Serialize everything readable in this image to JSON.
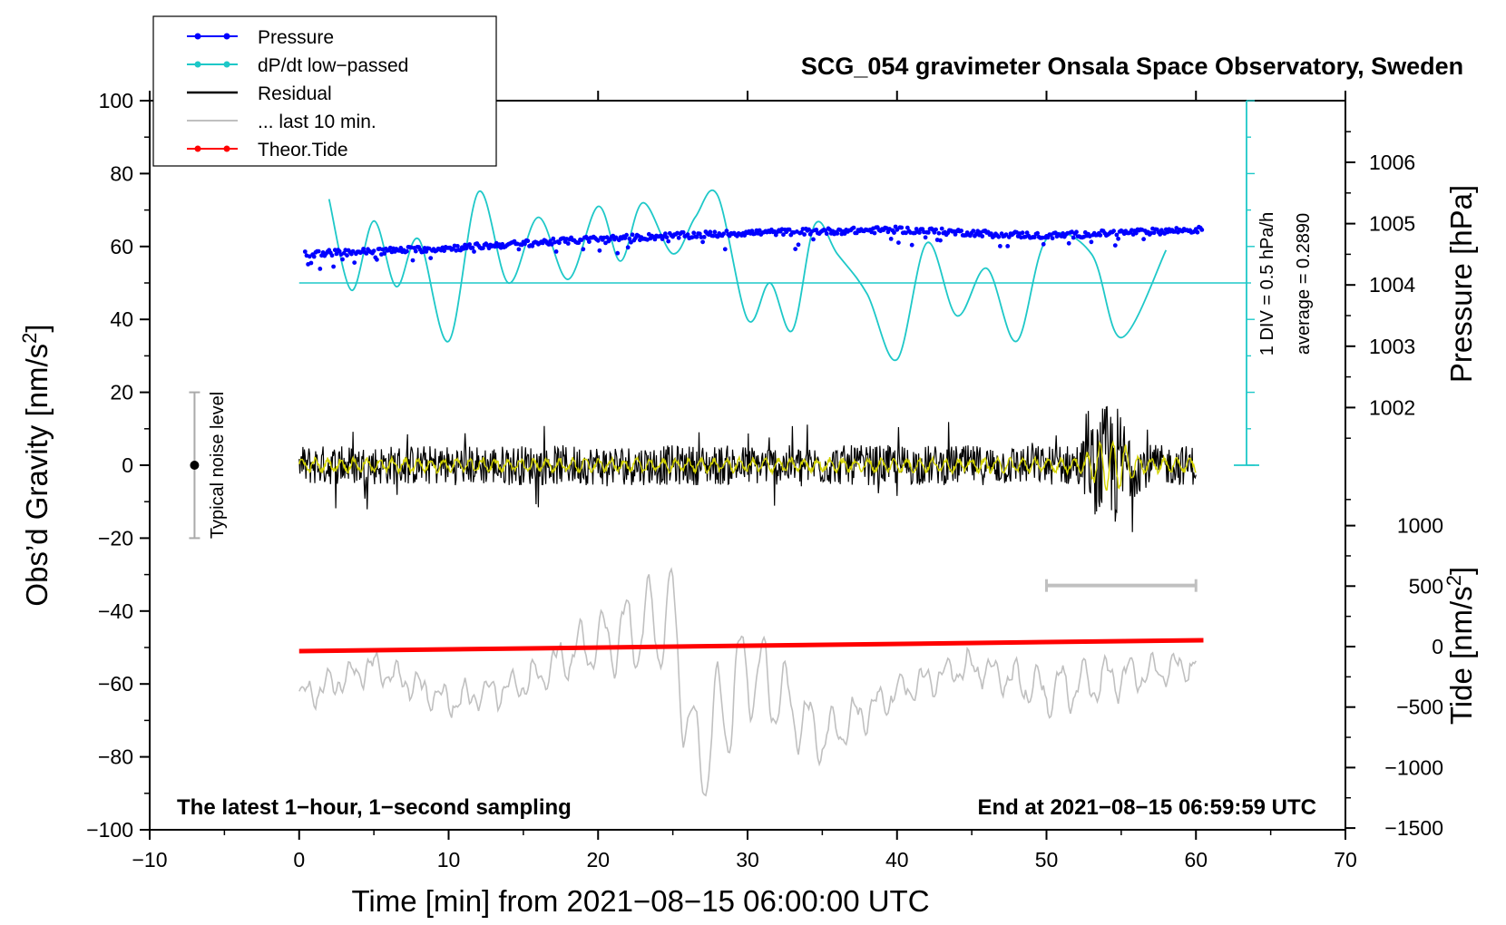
{
  "chart_data": {
    "type": "line",
    "title": "SCG_054 gravimeter Onsala Space Observatory, Sweden",
    "xlabel": "Time [min] from 2021−08−15 06:00:00 UTC",
    "ylabel_left": "Obs’d Gravity [nm/s",
    "ylabel_left_sup": "2",
    "ylabel_left_end": "]",
    "ylabel_right_pressure": "Pressure [hPa]",
    "ylabel_right_tide": "Tide [nm/s",
    "ylabel_right_tide_sup": "2",
    "ylabel_right_tide_end": "]",
    "xlim": [
      -10,
      70
    ],
    "ylim": [
      -100,
      100
    ],
    "x_ticks": [
      "−10",
      "0",
      "10",
      "20",
      "30",
      "40",
      "50",
      "60",
      "70"
    ],
    "y_ticks": [
      "−100",
      "−80",
      "−60",
      "−40",
      "−20",
      "0",
      "20",
      "40",
      "60",
      "80",
      "100"
    ],
    "pressure_axis": {
      "ticks": [
        "1002",
        "1003",
        "1004",
        "1005",
        "1006"
      ],
      "range_hpa": [
        1000.2,
        1006.8
      ]
    },
    "tide_axis": {
      "ticks": [
        "−1500",
        "−1000",
        "−500",
        "0",
        "500",
        "1000"
      ]
    },
    "legend": [
      {
        "label": "Pressure",
        "color": "#0000ff",
        "marker": true
      },
      {
        "label": "dP/dt low−passed",
        "color": "#1ec8c8",
        "marker": true
      },
      {
        "label": "Residual",
        "color": "#000000",
        "marker": false
      },
      {
        "label": "... last 10 min.",
        "color": "#c0c0c0",
        "marker": false
      },
      {
        "label": "Theor.Tide",
        "color": "#ff0000",
        "marker": true
      }
    ],
    "series": [
      {
        "name": "Pressure",
        "unit": "hPa",
        "x": [
          0,
          10,
          20,
          30,
          40,
          50,
          60
        ],
        "values": [
          1004.5,
          1004.6,
          1004.75,
          1004.85,
          1004.9,
          1004.8,
          1004.9
        ]
      },
      {
        "name": "dP/dt low-passed",
        "unit": "gravity-axis",
        "x": [
          2,
          3.5,
          5,
          6.5,
          8,
          10,
          12,
          14,
          16,
          18,
          20,
          21.5,
          23,
          25,
          26.5,
          28,
          30,
          31.5,
          33,
          34.5,
          36,
          38,
          40,
          42,
          44,
          46,
          48,
          50,
          53,
          55,
          58
        ],
        "values": [
          73,
          48,
          67,
          49,
          62,
          34,
          75,
          50,
          68,
          51,
          71,
          56,
          72,
          58,
          68,
          74,
          40,
          50,
          37,
          66,
          58,
          47,
          29,
          61,
          41,
          54,
          34,
          62,
          58,
          35,
          59
        ]
      },
      {
        "name": "Residual",
        "unit": "nm/s2",
        "x": [
          0,
          5.5,
          10,
          20,
          30,
          40,
          50,
          54,
          55,
          60
        ],
        "values": [
          0,
          -16,
          8,
          0,
          10,
          -8,
          5,
          20,
          -20,
          6
        ]
      },
      {
        "name": "... last 10 min.",
        "unit": "nm/s2",
        "x": [
          0,
          5,
          10,
          15,
          19,
          25,
          26.5,
          30,
          35,
          40,
          45,
          50,
          55,
          60
        ],
        "values": [
          -64,
          -55,
          -65,
          -60,
          -50,
          -42,
          -82,
          -55,
          -75,
          -62,
          -55,
          -62,
          -58,
          -55
        ]
      },
      {
        "name": "Theor.Tide",
        "unit": "nm/s2",
        "x": [
          0,
          60
        ],
        "values": [
          -51,
          -48
        ]
      }
    ],
    "dpdt_reference": {
      "average_line": 50,
      "div_label": "1 DIV = 0.5 hPa/h",
      "average_label": "average = 0.2890"
    },
    "noise_bar": {
      "label": "Typical noise level",
      "center": 0,
      "range": [
        -20,
        20
      ],
      "x": -7
    },
    "window_marker": {
      "x_range": [
        50,
        60
      ],
      "y": -33
    },
    "notes": {
      "bottom_left": "The latest 1−hour, 1−second sampling",
      "bottom_right": "End at 2021−08−15 06:59:59 UTC"
    }
  },
  "colors": {
    "pressure": "#0000ff",
    "dpdt": "#1ec8c8",
    "residual": "#000000",
    "residual_smooth": "#d4d400",
    "last10": "#c0c0c0",
    "tide": "#ff0000",
    "noise_bar": "#aaaaaa"
  }
}
